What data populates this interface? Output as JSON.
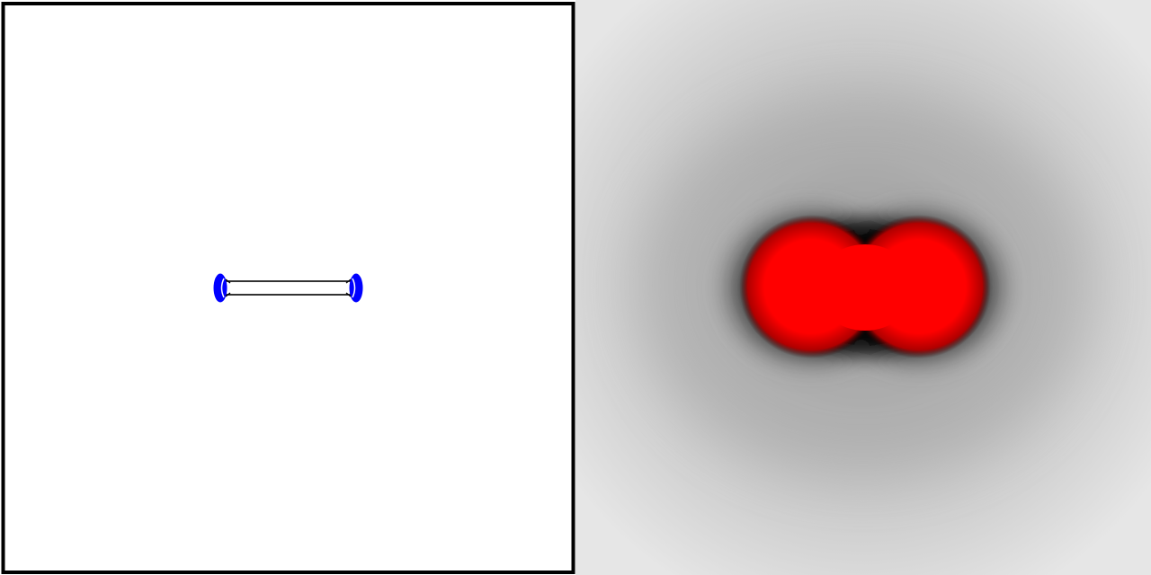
{
  "left_panel": {
    "background": "#ffffff",
    "frame_color": "#000000",
    "molecule_stroke": "#000000",
    "marker_color": "#0000ff"
  },
  "right_panel": {
    "background": "#e4e4e4",
    "halo_color": "#000000",
    "lobe_color": "#ff0000"
  }
}
